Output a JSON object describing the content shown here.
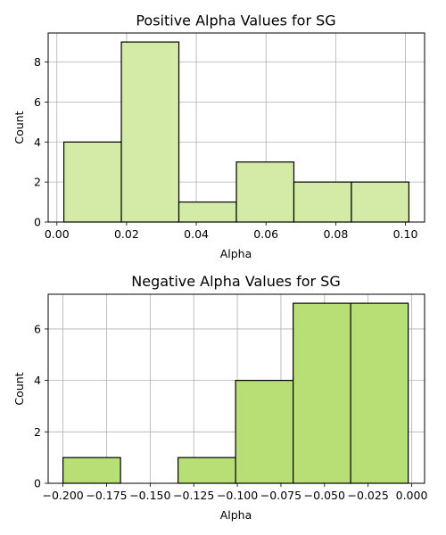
{
  "chart_data": [
    {
      "type": "bar",
      "subtype": "histogram",
      "title": "Positive Alpha Values for SG",
      "xlabel": "Alpha",
      "ylabel": "Count",
      "bin_edges": [
        0.002,
        0.0185,
        0.035,
        0.0515,
        0.068,
        0.0845,
        0.101
      ],
      "values": [
        4,
        9,
        1,
        3,
        2,
        2
      ],
      "xlim": [
        -0.0025,
        0.1055
      ],
      "ylim": [
        0,
        9.45
      ],
      "xticks": [
        0.0,
        0.02,
        0.04,
        0.06,
        0.08,
        0.1
      ],
      "xtick_labels": [
        "0.00",
        "0.02",
        "0.04",
        "0.06",
        "0.08",
        "0.10"
      ],
      "yticks": [
        0,
        2,
        4,
        6,
        8
      ],
      "ytick_labels": [
        "0",
        "2",
        "4",
        "6",
        "8"
      ],
      "grid": true,
      "bar_color": "#d4eba8",
      "edge_color": "#000000",
      "grid_color": "#b0b0b0"
    },
    {
      "type": "bar",
      "subtype": "histogram",
      "title": "Negative Alpha Values for SG",
      "xlabel": "Alpha",
      "ylabel": "Count",
      "bin_edges": [
        -0.2,
        -0.167,
        -0.134,
        -0.101,
        -0.068,
        -0.035,
        -0.002
      ],
      "values": [
        1,
        0,
        1,
        4,
        7,
        7
      ],
      "xlim": [
        -0.2085,
        0.0074
      ],
      "ylim": [
        0,
        7.35
      ],
      "xticks": [
        -0.2,
        -0.175,
        -0.15,
        -0.125,
        -0.1,
        -0.075,
        -0.05,
        -0.025,
        0.0
      ],
      "xtick_labels": [
        "−0.200",
        "−0.175",
        "−0.150",
        "−0.125",
        "−0.100",
        "−0.075",
        "−0.050",
        "−0.025",
        "0.000"
      ],
      "yticks": [
        0,
        2,
        4,
        6
      ],
      "ytick_labels": [
        "0",
        "2",
        "4",
        "6"
      ],
      "grid": true,
      "bar_color": "#b8de76",
      "edge_color": "#000000",
      "grid_color": "#b0b0b0"
    }
  ]
}
